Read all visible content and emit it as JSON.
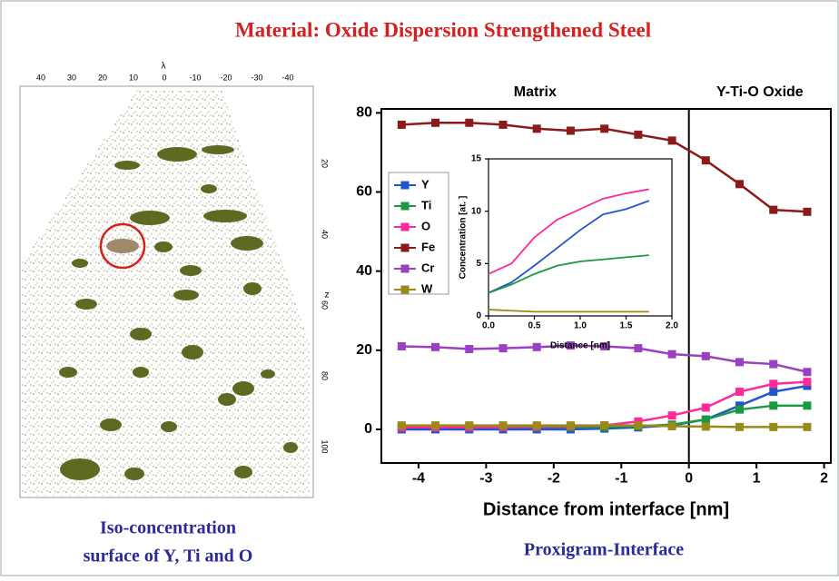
{
  "title": "Material: Oxide Dispersion Strengthened Steel",
  "left_caption": [
    "Iso-concentration",
    "surface of Y, Ti and O"
  ],
  "right_caption": "Proxigram-Interface",
  "atom_map": {
    "top_axis": "λ",
    "top_ticks": [
      "40",
      "30",
      "20",
      "10",
      "0",
      "-10",
      "-20",
      "-30",
      "-40"
    ],
    "side_axis": "z",
    "side_ticks": [
      "20",
      "40",
      "60",
      "80",
      "100"
    ]
  },
  "chart_data": [
    {
      "type": "line",
      "marker": "square",
      "xlabel": "Distance from interface [nm]",
      "annotations": [
        "Matrix",
        "Y-Ti-O Oxide"
      ],
      "vline": 0,
      "legend": "upper left",
      "x": [
        -4.25,
        -3.75,
        -3.25,
        -2.75,
        -2.25,
        -1.75,
        -1.25,
        -0.75,
        -0.25,
        0.25,
        0.75,
        1.25,
        1.75
      ],
      "xlim": [
        -4.55,
        2.1
      ],
      "xticks": [
        -4,
        -3,
        -2,
        -1,
        0,
        1,
        2
      ],
      "ylim": [
        -8.5,
        81
      ],
      "yticks": [
        0,
        20,
        40,
        60,
        80
      ],
      "series": [
        {
          "name": "Y",
          "color": "#2255cc",
          "values": [
            0,
            0,
            0,
            0,
            0,
            0,
            0.2,
            0.5,
            1,
            2.5,
            6,
            9.5,
            11
          ]
        },
        {
          "name": "Ti",
          "color": "#1a9a40",
          "values": [
            0.5,
            0.5,
            0.5,
            0.5,
            0.5,
            0.5,
            0.6,
            0.8,
            1.2,
            2.5,
            5,
            6,
            6
          ]
        },
        {
          "name": "O",
          "color": "#ff2a9a",
          "values": [
            0.5,
            0.5,
            0.5,
            0.6,
            0.7,
            0.8,
            1,
            2,
            3.5,
            5.5,
            9.5,
            11.5,
            12
          ]
        },
        {
          "name": "Fe",
          "color": "#8b1a1a",
          "values": [
            77,
            77.5,
            77.5,
            77,
            76,
            75.5,
            76,
            74.5,
            73,
            68,
            62,
            55.5,
            55
          ]
        },
        {
          "name": "Cr",
          "color": "#9a40c0",
          "values": [
            21,
            20.8,
            20.3,
            20.5,
            20.8,
            21.2,
            21,
            20.5,
            19,
            18.5,
            17,
            16.5,
            14.5
          ]
        },
        {
          "name": "W",
          "color": "#9a8a1a",
          "values": [
            1,
            1,
            1,
            1,
            1,
            1,
            1,
            1,
            0.8,
            0.7,
            0.6,
            0.6,
            0.6
          ]
        }
      ]
    },
    {
      "type": "line",
      "xlabel": "Distance [nm]",
      "ylabel": "Concentration [at. ]",
      "x": [
        0,
        0.25,
        0.5,
        0.75,
        1,
        1.25,
        1.5,
        1.75
      ],
      "xlim": [
        0,
        2
      ],
      "xticks": [
        {
          "value": 0,
          "label": "0.0"
        },
        0.5,
        {
          "value": 1,
          "label": "1.0"
        },
        1.5,
        {
          "value": 2,
          "label": "2.0"
        }
      ],
      "ylim": [
        0,
        15
      ],
      "yticks": [
        {
          "value": 0,
          "label": "0"
        },
        5,
        10,
        15
      ],
      "series": [
        {
          "color": "#2255cc",
          "values": [
            2.2,
            3.2,
            4.8,
            6.5,
            8.2,
            9.7,
            10.2,
            11
          ]
        },
        {
          "color": "#1a9a40",
          "values": [
            2.2,
            3,
            4,
            4.8,
            5.2,
            5.4,
            5.6,
            5.8
          ]
        },
        {
          "color": "#ff2a9a",
          "values": [
            4,
            5,
            7.5,
            9.2,
            10.2,
            11.2,
            11.7,
            12.1
          ]
        },
        {
          "color": "#9a8a1a",
          "values": [
            0.6,
            0.5,
            0.4,
            0.4,
            0.4,
            0.4,
            0.4,
            0.4
          ]
        }
      ]
    }
  ]
}
